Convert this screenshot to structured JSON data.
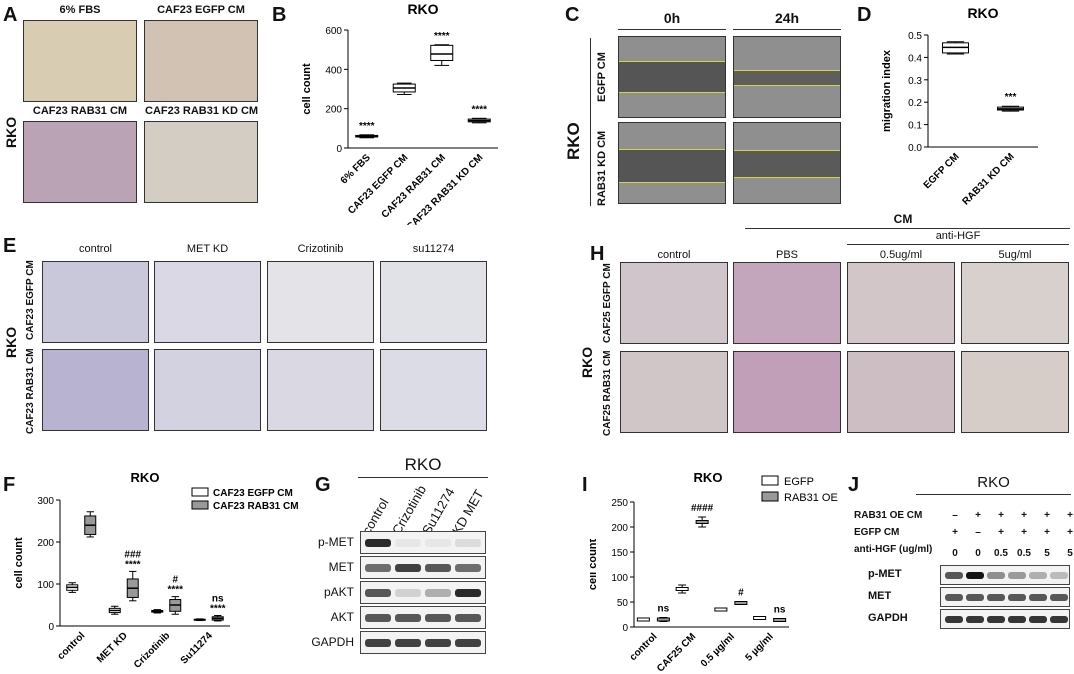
{
  "panels": {
    "A": {
      "letter": "A",
      "row_label": "RKO",
      "images": [
        "6% FBS",
        "CAF23 EGFP CM",
        "CAF23 RAB31 CM",
        "CAF23 RAB31 KD CM"
      ]
    },
    "C": {
      "letter": "C",
      "times": [
        "0h",
        "24h"
      ],
      "row_label": "RKO",
      "rows": [
        "EGFP CM",
        "RAB31 KD CM"
      ]
    },
    "E": {
      "letter": "E",
      "cols": [
        "control",
        "MET KD",
        "Crizotinib",
        "su11274"
      ],
      "rows": [
        "CAF23 EGFP CM",
        "CAF23 RAB31 CM"
      ],
      "row_label": "RKO"
    },
    "G": {
      "letter": "G",
      "title": "RKO",
      "lanes": [
        "control",
        "Crizotinib",
        "Su11274",
        "KD MET"
      ],
      "blots": [
        "p-MET",
        "MET",
        "pAKT",
        "AKT",
        "GAPDH"
      ]
    },
    "H": {
      "letter": "H",
      "top_label": "CM",
      "sub_label": "anti-HGF",
      "cols": [
        "control",
        "PBS",
        "0.5ug/ml",
        "5ug/ml"
      ],
      "rows": [
        "CAF25 EGFP CM",
        "CAF25 RAB31 CM"
      ],
      "row_label": "RKO"
    },
    "J": {
      "letter": "J",
      "title": "RKO",
      "cond_names": [
        "RAB31 OE CM",
        "EGFP CM",
        "anti-HGF (ug/ml)"
      ],
      "cond_values": [
        [
          "–",
          "+",
          "+",
          "+",
          "+",
          "+"
        ],
        [
          "+",
          "–",
          "+",
          "+",
          "+",
          "+"
        ],
        [
          "0",
          "0",
          "0.5",
          "0.5",
          "5",
          "5"
        ]
      ],
      "blots": [
        "p-MET",
        "MET",
        "GAPDH"
      ]
    }
  },
  "chart_data": [
    {
      "id": "B",
      "letter": "B",
      "type": "box",
      "title": "RKO",
      "ylabel": "cell count",
      "ylim": [
        0,
        600
      ],
      "yticks": [
        0,
        200,
        400,
        600
      ],
      "categories": [
        "6% FBS",
        "CAF23 EGFP CM",
        "CAF23 RAB31 CM",
        "CAF23 RAB31 KD CM"
      ],
      "boxes": [
        {
          "min": 52,
          "q1": 56,
          "median": 60,
          "q3": 64,
          "max": 67
        },
        {
          "min": 272,
          "q1": 285,
          "median": 305,
          "q3": 325,
          "max": 330
        },
        {
          "min": 420,
          "q1": 445,
          "median": 478,
          "q3": 522,
          "max": 525
        },
        {
          "min": 128,
          "q1": 133,
          "median": 139,
          "q3": 147,
          "max": 151
        }
      ],
      "annotations": [
        "****",
        "",
        "****",
        "****"
      ]
    },
    {
      "id": "D",
      "letter": "D",
      "type": "box",
      "title": "RKO",
      "ylabel": "migration index",
      "ylim": [
        0,
        0.5
      ],
      "yticks": [
        "0.0",
        "0.1",
        "0.2",
        "0.3",
        "0.4",
        "0.5"
      ],
      "categories": [
        "EGFP CM",
        "RAB31 KD CM"
      ],
      "boxes": [
        {
          "min": 0.415,
          "q1": 0.42,
          "median": 0.445,
          "q3": 0.465,
          "max": 0.47
        },
        {
          "min": 0.16,
          "q1": 0.165,
          "median": 0.17,
          "q3": 0.178,
          "max": 0.182
        }
      ],
      "annotations": [
        "",
        "***"
      ]
    },
    {
      "id": "F",
      "letter": "F",
      "type": "box",
      "title": "RKO",
      "ylabel": "cell count",
      "ylim": [
        0,
        300
      ],
      "yticks": [
        0,
        100,
        200,
        300
      ],
      "categories": [
        "control",
        "MET KD",
        "Crizotinib",
        "Su11274"
      ],
      "series": [
        {
          "name": "CAF23 EGFP CM",
          "color": "#ffffff",
          "boxes": [
            {
              "min": 80,
              "q1": 85,
              "median": 92,
              "q3": 98,
              "max": 103
            },
            {
              "min": 28,
              "q1": 32,
              "median": 37,
              "q3": 42,
              "max": 47
            },
            {
              "min": 31,
              "q1": 33,
              "median": 35,
              "q3": 37,
              "max": 39
            },
            {
              "min": 13,
              "q1": 14,
              "median": 15,
              "q3": 16,
              "max": 17
            }
          ]
        },
        {
          "name": "CAF23 RAB31 CM",
          "color": "#999999",
          "boxes": [
            {
              "min": 212,
              "q1": 218,
              "median": 240,
              "q3": 262,
              "max": 272
            },
            {
              "min": 60,
              "q1": 68,
              "median": 90,
              "q3": 112,
              "max": 130
            },
            {
              "min": 28,
              "q1": 35,
              "median": 50,
              "q3": 63,
              "max": 70
            },
            {
              "min": 12,
              "q1": 14,
              "median": 18,
              "q3": 22,
              "max": 25
            }
          ]
        }
      ],
      "annotations": [
        "",
        "###\n****",
        "#\n****",
        "ns\n****"
      ]
    },
    {
      "id": "I",
      "letter": "I",
      "type": "bar",
      "title": "RKO",
      "ylabel": "cell count",
      "ylim": [
        0,
        250
      ],
      "yticks": [
        0,
        50,
        100,
        150,
        200,
        250
      ],
      "categories": [
        "control",
        "CAF25 CM",
        "0.5 µg/ml",
        "5 µg/ml"
      ],
      "series": [
        {
          "name": "EGFP",
          "color": "#ffffff",
          "values": [
            15,
            76,
            35,
            18
          ],
          "errors": [
            3,
            8,
            2,
            3
          ]
        },
        {
          "name": "RAB31 OE",
          "color": "#999999",
          "values": [
            15,
            210,
            48,
            14
          ],
          "errors": [
            4,
            10,
            3,
            3
          ]
        }
      ],
      "annotations": [
        "ns",
        "####",
        "#",
        "ns"
      ]
    }
  ]
}
